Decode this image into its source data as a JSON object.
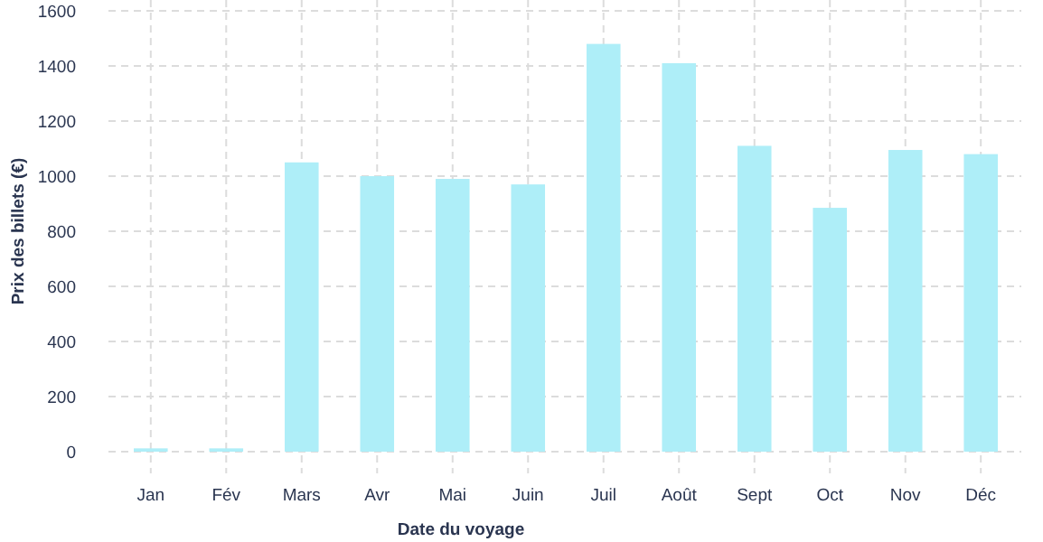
{
  "chart_data": {
    "type": "bar",
    "xlabel": "Date du voyage",
    "ylabel": "Prix des billets (€)",
    "categories": [
      "Jan",
      "Fév",
      "Mars",
      "Avr",
      "Mai",
      "Juin",
      "Juil",
      "Août",
      "Sept",
      "Oct",
      "Nov",
      "Déc"
    ],
    "values": [
      12,
      12,
      1050,
      1000,
      990,
      970,
      1480,
      1410,
      1110,
      885,
      1095,
      1080
    ],
    "color": "#aeeef8",
    "ylim": [
      0,
      1600
    ],
    "yticks": [
      0,
      200,
      400,
      600,
      800,
      1000,
      1200,
      1400,
      1600
    ],
    "grid": true
  }
}
